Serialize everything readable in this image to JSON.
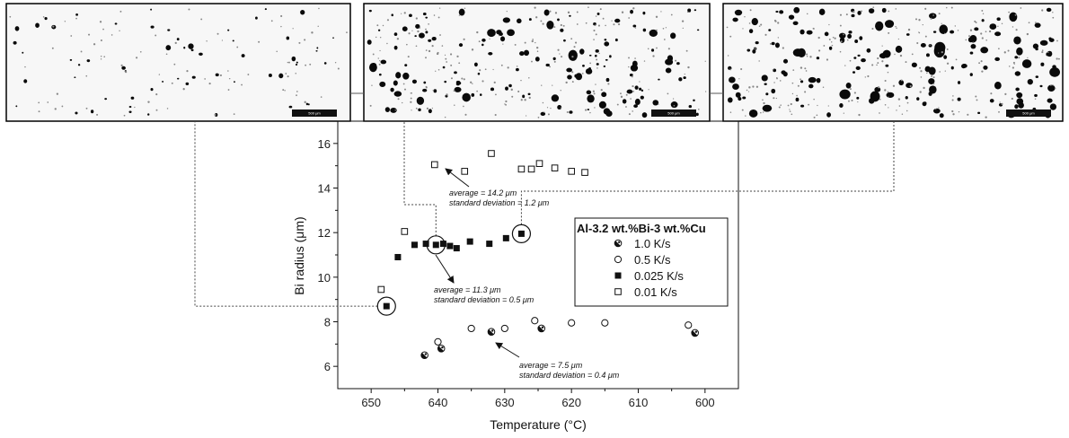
{
  "micrographs": [
    {
      "scale_label": "500 μm"
    },
    {
      "scale_label": "500 μm"
    },
    {
      "scale_label": "500 μm"
    }
  ],
  "chart_data": {
    "type": "scatter",
    "xlabel": "Temperature (°C)",
    "ylabel": "Bi radius (μm)",
    "xlim": [
      655,
      595
    ],
    "ylim": [
      5,
      17
    ],
    "x_reversed": true,
    "xticks": [
      650,
      640,
      630,
      620,
      610,
      600
    ],
    "yticks": [
      6,
      8,
      10,
      12,
      14,
      16
    ],
    "legend_title": "Al-3.2 wt.%Bi-3 wt.%Cu",
    "legend_position": "right",
    "series": [
      {
        "name": "1.0 K/s",
        "marker": "half-filled-circle",
        "x": [
          642,
          639.5,
          632,
          624.5,
          601.5
        ],
        "y": [
          6.5,
          6.8,
          7.55,
          7.7,
          7.5
        ]
      },
      {
        "name": "0.5 K/s",
        "marker": "open-circle",
        "x": [
          640,
          635,
          630,
          625.5,
          620,
          615,
          602.5
        ],
        "y": [
          7.1,
          7.7,
          7.7,
          8.05,
          7.95,
          7.95,
          7.85
        ]
      },
      {
        "name": "0.025 K/s",
        "marker": "filled-square",
        "x": [
          647.7,
          646,
          643.5,
          641.8,
          640.3,
          639.2,
          638.2,
          637.2,
          635.2,
          632.3,
          629.8,
          627.5
        ],
        "y": [
          8.7,
          10.9,
          11.45,
          11.5,
          11.45,
          11.5,
          11.4,
          11.3,
          11.6,
          11.5,
          11.75,
          11.95
        ]
      },
      {
        "name": "0.01 K/s",
        "marker": "open-square",
        "x": [
          648.5,
          645,
          640.5,
          636,
          632,
          627.5,
          626,
          624.8,
          622.5,
          620,
          618
        ],
        "y": [
          9.45,
          12.05,
          15.05,
          14.75,
          15.55,
          14.85,
          14.85,
          15.1,
          14.9,
          14.75,
          14.7
        ]
      }
    ],
    "annotations": [
      {
        "line1": "average = 14.2 μm",
        "line2": "standard deviation = 1.2 μm"
      },
      {
        "line1": "average = 11.3 μm",
        "line2": "standard deviation = 0.5 μm"
      },
      {
        "line1": "average = 7.5 μm",
        "line2": "standard deviation = 0.4 μm"
      }
    ],
    "highlighted_points": [
      {
        "x": 647.7,
        "y": 8.7
      },
      {
        "x": 640.3,
        "y": 11.45
      },
      {
        "x": 627.5,
        "y": 11.95
      }
    ]
  }
}
